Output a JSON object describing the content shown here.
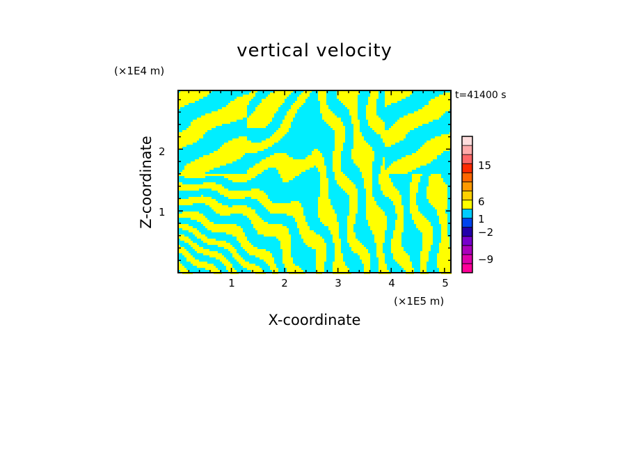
{
  "chart_data": {
    "type": "heatmap",
    "title": "vertical velocity",
    "xlabel": "X-coordinate",
    "ylabel": "Z-coordinate",
    "x_unit": "(×1E5 m)",
    "y_unit": "(×1E4 m)",
    "annotation": "t=41400 s",
    "xlim": [
      0,
      5.12
    ],
    "ylim": [
      0,
      2.95
    ],
    "x_ticks": [
      "1",
      "2",
      "3",
      "4",
      "5"
    ],
    "y_ticks": [
      "1",
      "2"
    ],
    "field_colors": {
      "positive": "#ffff00",
      "negative": "#00eeff"
    },
    "colorbar": {
      "tick_labels": [
        "15",
        "6",
        "1",
        "−2",
        "−9"
      ],
      "levels": [
        {
          "color": "#ff0099"
        },
        {
          "color": "#dd00aa"
        },
        {
          "color": "#aa00bb"
        },
        {
          "color": "#7700cc"
        },
        {
          "color": "#2200aa"
        },
        {
          "color": "#0044ee"
        },
        {
          "color": "#00ccff"
        },
        {
          "color": "#ffff00"
        },
        {
          "color": "#ffd000"
        },
        {
          "color": "#ff9900"
        },
        {
          "color": "#ff6600"
        },
        {
          "color": "#ff2a00"
        },
        {
          "color": "#ff6666"
        },
        {
          "color": "#ffaaaa"
        },
        {
          "color": "#ffdddd"
        }
      ]
    }
  }
}
